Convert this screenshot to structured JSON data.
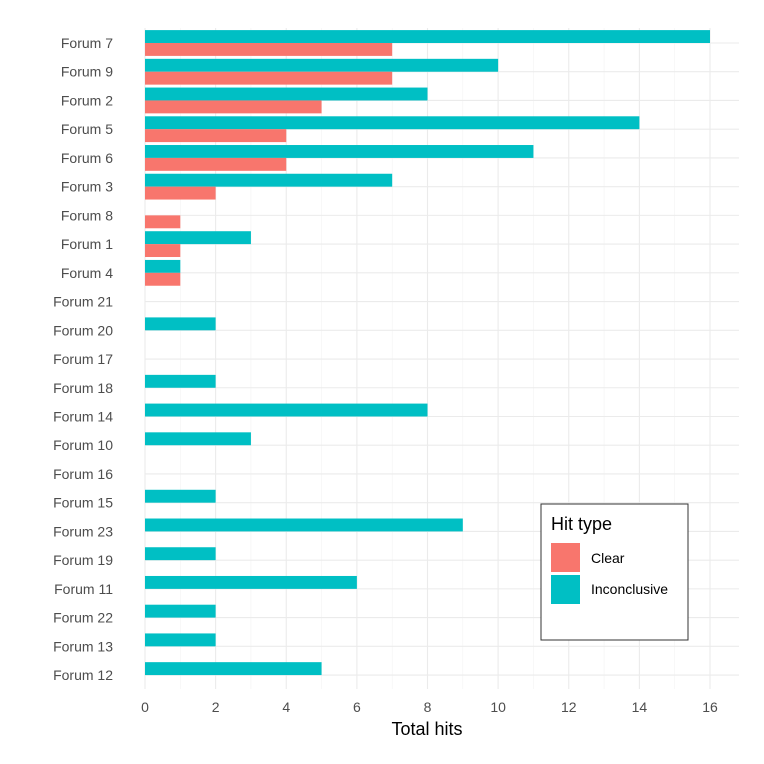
{
  "chart_data": {
    "type": "bar",
    "orientation": "horizontal",
    "categories": [
      "Forum 7",
      "Forum 9",
      "Forum 2",
      "Forum 5",
      "Forum 6",
      "Forum 3",
      "Forum 8",
      "Forum 1",
      "Forum 4",
      "Forum 21",
      "Forum 20",
      "Forum 17",
      "Forum 18",
      "Forum 14",
      "Forum 10",
      "Forum 16",
      "Forum 15",
      "Forum 23",
      "Forum 19",
      "Forum 11",
      "Forum 22",
      "Forum 13",
      "Forum 12"
    ],
    "series": [
      {
        "name": "Clear",
        "color": "#F8766D",
        "values": [
          7,
          7,
          5,
          4,
          4,
          2,
          1,
          1,
          1,
          0,
          0,
          0,
          0,
          0,
          0,
          0,
          0,
          0,
          0,
          0,
          0,
          0,
          0
        ]
      },
      {
        "name": "Inconclusive",
        "color": "#00BFC4",
        "values": [
          16,
          10,
          8,
          14,
          11,
          7,
          0,
          3,
          1,
          0,
          2,
          0,
          2,
          8,
          3,
          0,
          2,
          9,
          2,
          6,
          2,
          2,
          5
        ]
      }
    ],
    "xlabel": "Total hits",
    "ylabel": "",
    "xlim": [
      0,
      16.8
    ],
    "xticks": [
      0,
      2,
      4,
      6,
      8,
      10,
      12,
      14,
      16
    ],
    "legend": {
      "title": "Hit type",
      "position": "bottom-right"
    },
    "grid": true
  }
}
